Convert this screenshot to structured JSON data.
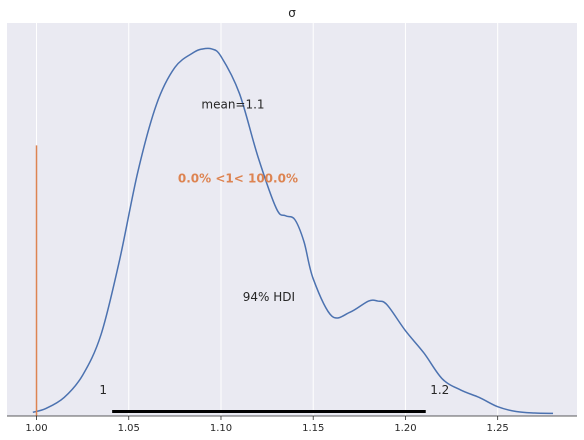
{
  "chart_data": {
    "type": "line",
    "title": "σ",
    "xlabel": "",
    "ylabel": "",
    "xlim": [
      0.984,
      1.293
    ],
    "ylim": [
      0,
      1.06
    ],
    "grid": true,
    "x_ticks": [
      1.0,
      1.05,
      1.1,
      1.15,
      1.2,
      1.25
    ],
    "x_tick_labels": [
      "1.00",
      "1.05",
      "1.10",
      "1.15",
      "1.20",
      "1.25"
    ],
    "density": {
      "x": [
        0.998,
        1.005,
        1.015,
        1.025,
        1.035,
        1.045,
        1.055,
        1.065,
        1.075,
        1.085,
        1.09,
        1.095,
        1.1,
        1.11,
        1.12,
        1.13,
        1.135,
        1.14,
        1.145,
        1.15,
        1.16,
        1.17,
        1.18,
        1.185,
        1.19,
        1.2,
        1.21,
        1.22,
        1.23,
        1.24,
        1.25,
        1.26,
        1.27,
        1.28
      ],
      "y": [
        0.01,
        0.02,
        0.05,
        0.11,
        0.22,
        0.42,
        0.66,
        0.84,
        0.94,
        0.98,
        0.99,
        0.99,
        0.97,
        0.87,
        0.7,
        0.56,
        0.54,
        0.53,
        0.47,
        0.37,
        0.27,
        0.28,
        0.31,
        0.31,
        0.3,
        0.23,
        0.17,
        0.1,
        0.07,
        0.05,
        0.025,
        0.012,
        0.008,
        0.007
      ]
    },
    "hdi": {
      "label": "94% HDI",
      "low": 1.041,
      "high": 1.211,
      "low_label": "1",
      "high_label": "1.2"
    },
    "mean_label": "mean=1.1",
    "mean_value": 1.1,
    "ref": {
      "value": 1.0,
      "label": "0.0% <1< 100.0%",
      "line_height": 0.73
    },
    "colors": {
      "background": "#eaeaf2",
      "grid": "#ffffff",
      "density": "#4c72b0",
      "ref": "#dd8452",
      "hdi": "#000000",
      "text": "#262626",
      "axis": "#262626"
    }
  }
}
